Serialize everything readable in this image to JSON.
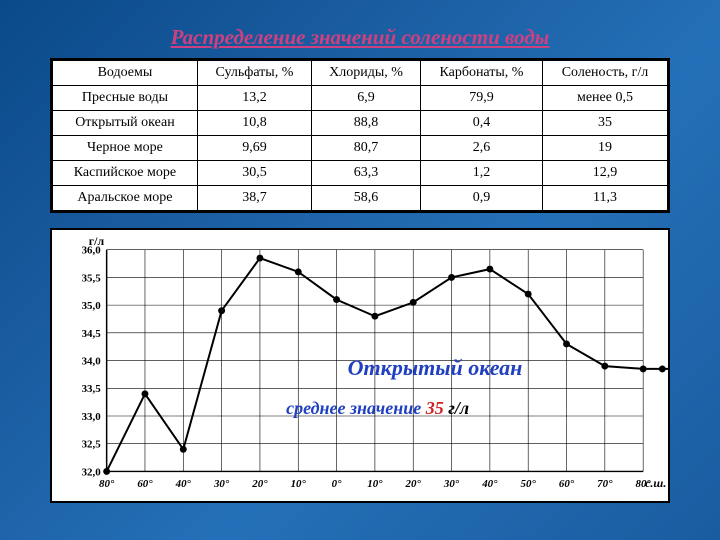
{
  "title": "Распределение значений солености воды",
  "table": {
    "columns": [
      "Водоемы",
      "Сульфаты, %",
      "Хлориды, %",
      "Карбонаты, %",
      "Соленость, г/л"
    ],
    "rows": [
      [
        "Пресные воды",
        "13,2",
        "6,9",
        "79,9",
        "менее 0,5"
      ],
      [
        "Открытый океан",
        "10,8",
        "88,8",
        "0,4",
        "35"
      ],
      [
        "Черное море",
        "9,69",
        "80,7",
        "2,6",
        "19"
      ],
      [
        "Каспийское море",
        "30,5",
        "63,3",
        "1,2",
        "12,9"
      ],
      [
        "Аральское море",
        "38,7",
        "58,6",
        "0,9",
        "11,3"
      ]
    ]
  },
  "chart": {
    "type": "line",
    "ylabel": "г/л",
    "xlabel": "с.ш.",
    "ylim": [
      32.0,
      36.0
    ],
    "ytick_step": 0.5,
    "yticks": [
      "32,0",
      "32,5",
      "33,0",
      "33,5",
      "34,0",
      "34,5",
      "35,0",
      "35,5",
      "36,0"
    ],
    "xticks": [
      "80°",
      "60°",
      "40°",
      "30°",
      "20°",
      "10°",
      "0°",
      "10°",
      "20°",
      "30°",
      "40°",
      "50°",
      "60°",
      "70°",
      "80°"
    ],
    "x_positions": [
      0,
      1,
      2,
      3,
      4,
      5,
      6,
      7,
      8,
      9,
      10,
      11,
      12,
      13,
      14
    ],
    "values": [
      32.0,
      33.4,
      32.4,
      34.9,
      35.85,
      35.6,
      35.1,
      34.8,
      35.05,
      35.5,
      35.65,
      35.2,
      34.3,
      33.9,
      33.85
    ],
    "line_color": "#000000",
    "line_width": 2,
    "marker": "circle",
    "marker_size": 3.5,
    "marker_color": "#000000",
    "grid_color": "#000000",
    "grid_width": 0.6,
    "background_color": "#ffffff",
    "title_text": "Открытый океан",
    "title_color": "#2040c0",
    "title_fontsize": 22,
    "subtitle_prefix": "среднее значение ",
    "subtitle_value": "35 ",
    "subtitle_unit": "г/л",
    "subtitle_prefix_color": "#2040c0",
    "subtitle_value_color": "#d02020",
    "subtitle_unit_color": "#000000",
    "subtitle_fontsize": 18,
    "extra_points_after": [
      {
        "xi": 14.5,
        "y": 33.85
      },
      {
        "xi": 15,
        "y": 33.85
      }
    ]
  }
}
